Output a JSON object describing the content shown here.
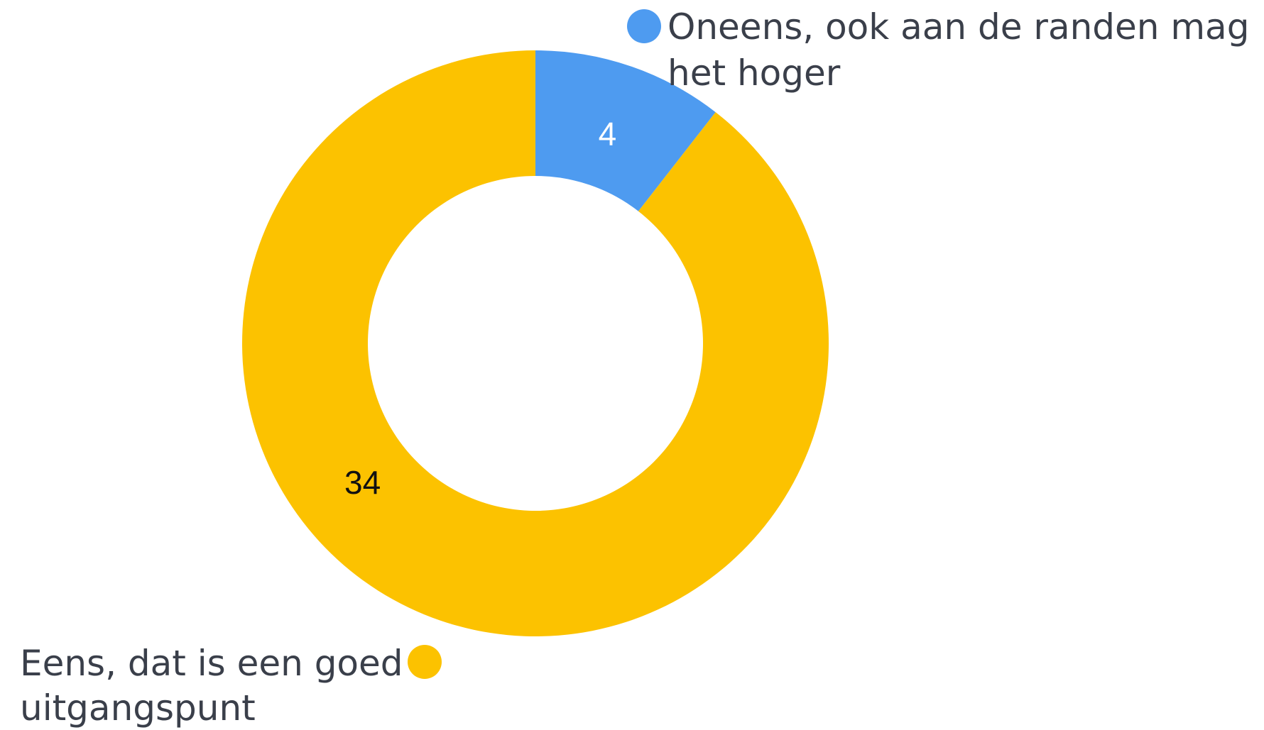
{
  "chart_data": {
    "type": "pie",
    "variant": "donut",
    "title": "",
    "slices": [
      {
        "label_lines": [
          "Oneens, ook aan de randen mag",
          "het hoger"
        ],
        "value": 4,
        "color": "#4e9bf0",
        "value_label_color": "#ffffff"
      },
      {
        "label_lines": [
          "Eens, dat is een goed",
          "uitgangspunt"
        ],
        "value": 34,
        "color": "#fcc200",
        "value_label_color": "#111111"
      }
    ],
    "start_angle": "12 o'clock",
    "direction": "clockwise",
    "legend": "outside labels with dot markers"
  }
}
